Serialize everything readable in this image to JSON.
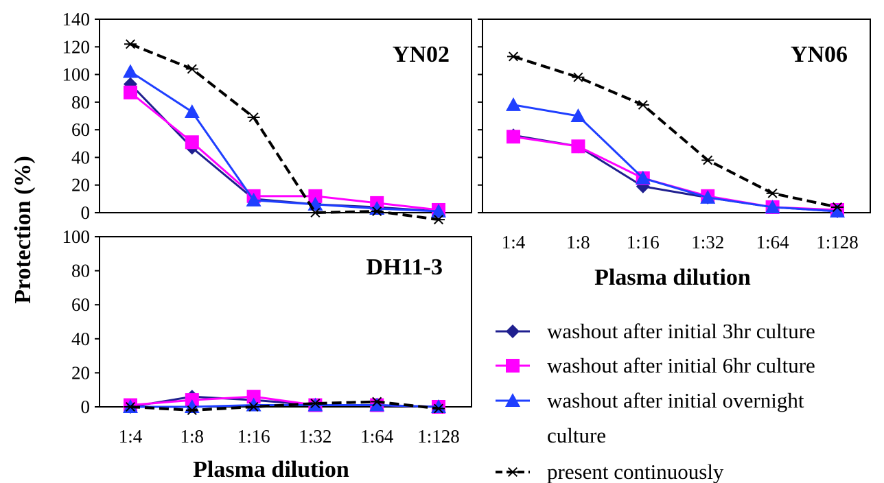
{
  "chart_data": [
    {
      "type": "line",
      "title": "YN02",
      "categories": [
        "1:4",
        "1:8",
        "1:16",
        "1:32",
        "1:64",
        "1:128"
      ],
      "xlabel": "",
      "ylabel": "Protection (%)",
      "ylim": [
        0,
        140
      ],
      "yticks": [
        0,
        20,
        40,
        60,
        80,
        100,
        120,
        140
      ],
      "grid": false,
      "series": [
        {
          "name": "washout after initial 3hr culture",
          "values": [
            93,
            47,
            10,
            6,
            4,
            1
          ]
        },
        {
          "name": "washout after initial 6hr culture",
          "values": [
            87,
            51,
            12,
            12,
            7,
            2
          ]
        },
        {
          "name": "washout after initial overnight culture",
          "values": [
            102,
            73,
            9,
            6,
            3,
            1
          ]
        },
        {
          "name": "present continuously",
          "values": [
            122,
            104,
            69,
            0,
            1,
            -5
          ]
        }
      ]
    },
    {
      "type": "line",
      "title": "YN06",
      "categories": [
        "1:4",
        "1:8",
        "1:16",
        "1:32",
        "1:64",
        "1:128"
      ],
      "xlabel": "Plasma dilution",
      "ylabel": "Protection (%)",
      "ylim": [
        0,
        140
      ],
      "yticks": [
        0,
        20,
        40,
        60,
        80,
        100,
        120,
        140
      ],
      "grid": false,
      "series": [
        {
          "name": "washout after initial 3hr culture",
          "values": [
            56,
            48,
            19,
            11,
            4,
            1
          ]
        },
        {
          "name": "washout after initial 6hr culture",
          "values": [
            55,
            48,
            25,
            12,
            4,
            2
          ]
        },
        {
          "name": "washout after initial overnight culture",
          "values": [
            78,
            70,
            25,
            11,
            4,
            1
          ]
        },
        {
          "name": "present continuously",
          "values": [
            113,
            98,
            78,
            38,
            14,
            4
          ]
        }
      ]
    },
    {
      "type": "line",
      "title": "DH11-3",
      "categories": [
        "1:4",
        "1:8",
        "1:16",
        "1:32",
        "1:64",
        "1:128"
      ],
      "xlabel": "Plasma dilution",
      "ylabel": "Protection (%)",
      "ylim": [
        0,
        100
      ],
      "yticks": [
        0,
        20,
        40,
        60,
        80,
        100
      ],
      "grid": false,
      "series": [
        {
          "name": "washout after initial 3hr culture",
          "values": [
            0,
            6,
            4,
            1,
            1,
            0
          ]
        },
        {
          "name": "washout after initial 6hr culture",
          "values": [
            1,
            4,
            6,
            1,
            1,
            0
          ]
        },
        {
          "name": "washout after initial overnight culture",
          "values": [
            0,
            0,
            1,
            1,
            1,
            0
          ]
        },
        {
          "name": "present continuously",
          "values": [
            0,
            -2,
            0,
            2,
            3,
            -1
          ]
        }
      ]
    }
  ],
  "shared": {
    "ylabel": "Protection (%)",
    "xlabel": "Plasma dilution",
    "legend_placement": "bottom-right"
  },
  "legend": [
    {
      "line1": "washout after initial 3hr culture",
      "line2": "",
      "marker": "diamond",
      "color": "#1f1f8f"
    },
    {
      "line1": "washout after initial 6hr culture",
      "line2": "",
      "marker": "square",
      "color": "#ff00ff"
    },
    {
      "line1": "washout after initial overnight",
      "line2": "culture",
      "marker": "triangle",
      "color": "#1f3fff"
    },
    {
      "line1": "present continuously",
      "line2": "",
      "marker": "asterisk",
      "color": "#000000"
    }
  ],
  "series_styles": [
    {
      "color": "#1f1f8f",
      "marker": "diamond",
      "dash": "solid"
    },
    {
      "color": "#ff00ff",
      "marker": "square",
      "dash": "solid"
    },
    {
      "color": "#1f3fff",
      "marker": "triangle",
      "dash": "solid"
    },
    {
      "color": "#000000",
      "marker": "asterisk",
      "dash": "dashed"
    }
  ]
}
